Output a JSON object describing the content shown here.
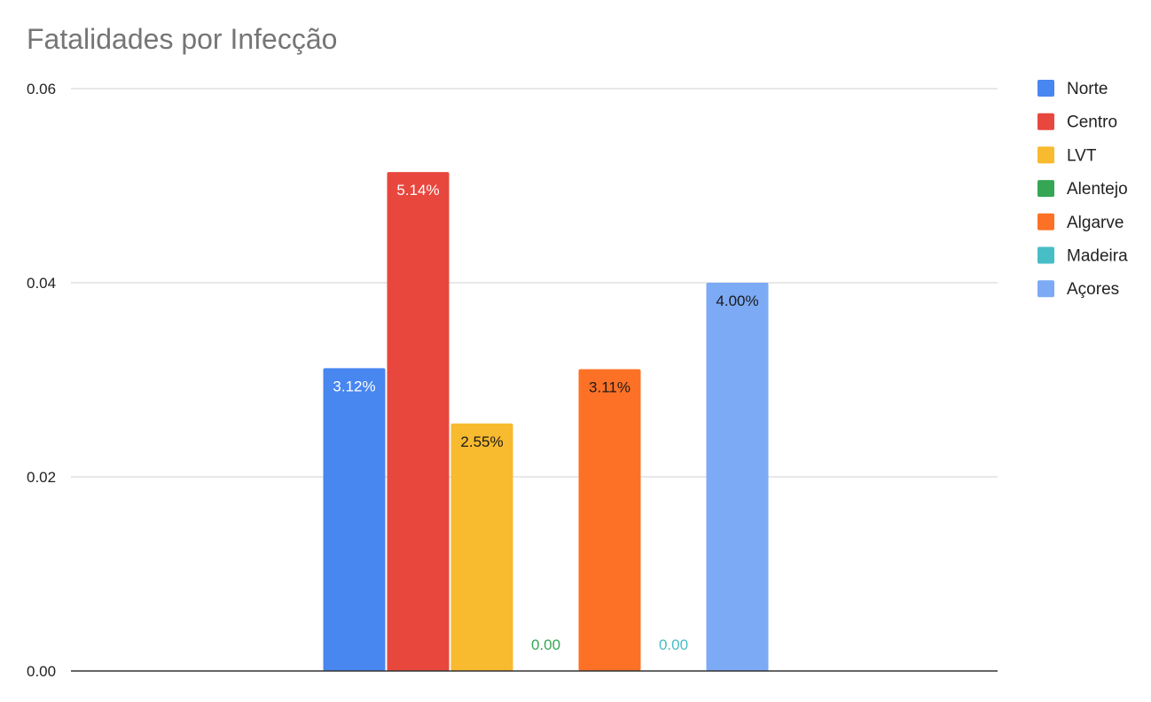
{
  "chart_data": {
    "type": "bar",
    "title": "Fatalidades por Infecção",
    "xlabel": "",
    "ylabel": "",
    "ylim": [
      0,
      0.06
    ],
    "yticks": [
      "0.00",
      "0.02",
      "0.04",
      "0.06"
    ],
    "ytick_values": [
      0,
      0.02,
      0.04,
      0.06
    ],
    "grid": true,
    "legend_position": "right",
    "series": [
      {
        "name": "Norte",
        "value": 0.0312,
        "label": "3.12%",
        "color": "#4886F0",
        "label_color": "#ffffff"
      },
      {
        "name": "Centro",
        "value": 0.0514,
        "label": "5.14%",
        "color": "#E8473E",
        "label_color": "#ffffff"
      },
      {
        "name": "LVT",
        "value": 0.0255,
        "label": "2.55%",
        "color": "#F8BA2E",
        "label_color": "#1a1a1a"
      },
      {
        "name": "Alentejo",
        "value": 0,
        "label": "0.00",
        "color": "#35A654",
        "label_color": "#35A654"
      },
      {
        "name": "Algarve",
        "value": 0.0311,
        "label": "3.11%",
        "color": "#FD7126",
        "label_color": "#1a1a1a"
      },
      {
        "name": "Madeira",
        "value": 0,
        "label": "0.00",
        "color": "#47BDC6",
        "label_color": "#47BDC6"
      },
      {
        "name": "Açores",
        "value": 0.04,
        "label": "4.00%",
        "color": "#7CAAF5",
        "label_color": "#1a1a1a"
      }
    ]
  }
}
